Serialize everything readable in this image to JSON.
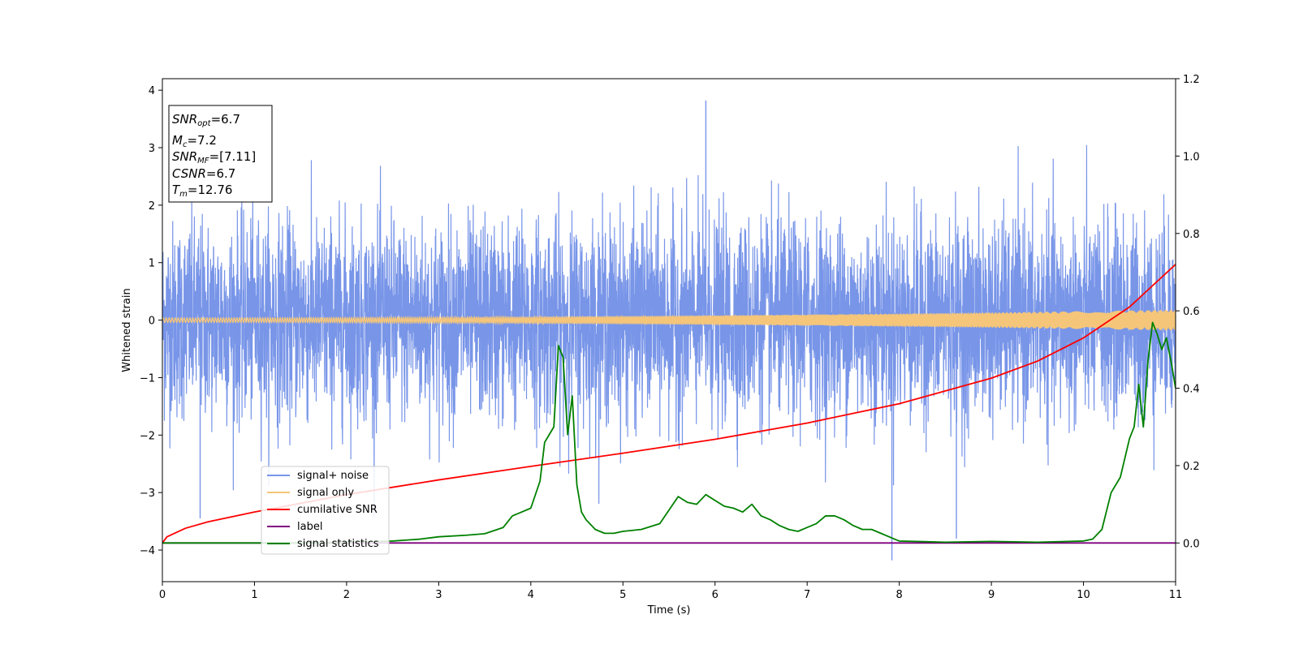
{
  "chart_data": {
    "type": "line",
    "title": "",
    "xlabel": "Time (s)",
    "ylabel": "Whitened strain",
    "xlim": [
      0,
      11
    ],
    "ylim_left": [
      -4.55,
      4.2
    ],
    "ylim_right": [
      -0.1,
      1.2
    ],
    "xticks": [
      0,
      1,
      2,
      3,
      4,
      5,
      6,
      7,
      8,
      9,
      10,
      11
    ],
    "yticks_left": [
      -4,
      -3,
      -2,
      -1,
      0,
      1,
      2,
      3,
      4
    ],
    "yticks_right": [
      0.0,
      0.2,
      0.4,
      0.6,
      0.8,
      1.0,
      1.2
    ],
    "grid": false,
    "legend_position": "lower-left",
    "info_box": {
      "lines": [
        {
          "italic": "SNR",
          "sub": "opt",
          "rest": "=6.7"
        },
        {
          "italic": "M",
          "sub": "c",
          "rest": "=7.2"
        },
        {
          "italic": "SNR",
          "sub": "MF",
          "rest": "=[7.11]"
        },
        {
          "italic": "CSNR",
          "sub": "",
          "rest": "=6.7"
        },
        {
          "italic": "T",
          "sub": "m",
          "rest": "=12.76"
        }
      ]
    },
    "series": [
      {
        "name": "signal+ noise",
        "axis": "left",
        "color": "#7895e8",
        "kind": "noise",
        "sigma": 0.85,
        "clip": [
          -4.2,
          3.82
        ],
        "spikes": [
          {
            "x": 5.9,
            "y": 3.82
          },
          {
            "x": 7.92,
            "y": -4.18
          },
          {
            "x": 0.41,
            "y": -3.45
          },
          {
            "x": 8.62,
            "y": -3.8
          }
        ]
      },
      {
        "name": "signal only",
        "axis": "left",
        "color": "#f5c67a",
        "kind": "chirp",
        "amp_start": 0.04,
        "amp_end": 0.18
      },
      {
        "name": "cumilative SNR",
        "axis": "right",
        "color": "#ff0000",
        "kind": "curve",
        "x": [
          0,
          0.05,
          0.25,
          0.5,
          1,
          2,
          3,
          4,
          5,
          6,
          7,
          8,
          9,
          9.5,
          10,
          10.5,
          11
        ],
        "y": [
          0.0,
          0.016,
          0.038,
          0.055,
          0.08,
          0.125,
          0.163,
          0.198,
          0.232,
          0.268,
          0.31,
          0.36,
          0.426,
          0.47,
          0.53,
          0.61,
          0.72
        ]
      },
      {
        "name": "label",
        "axis": "right",
        "color": "#800080",
        "kind": "curve",
        "x": [
          0,
          11
        ],
        "y": [
          0,
          0
        ]
      },
      {
        "name": "signal statistics",
        "axis": "right",
        "color": "#008000",
        "kind": "curve",
        "x": [
          0,
          0.5,
          1.0,
          1.5,
          2.0,
          2.5,
          2.8,
          3.0,
          3.3,
          3.5,
          3.7,
          3.8,
          3.9,
          4.0,
          4.1,
          4.15,
          4.2,
          4.25,
          4.3,
          4.35,
          4.4,
          4.45,
          4.5,
          4.55,
          4.6,
          4.7,
          4.8,
          4.9,
          5.0,
          5.2,
          5.4,
          5.5,
          5.6,
          5.7,
          5.8,
          5.9,
          6.0,
          6.1,
          6.2,
          6.3,
          6.4,
          6.5,
          6.6,
          6.7,
          6.8,
          6.9,
          7.0,
          7.1,
          7.2,
          7.3,
          7.4,
          7.5,
          7.6,
          7.7,
          7.8,
          7.9,
          8.0,
          8.5,
          9.0,
          9.5,
          10.0,
          10.1,
          10.2,
          10.3,
          10.4,
          10.5,
          10.55,
          10.6,
          10.65,
          10.7,
          10.75,
          10.8,
          10.85,
          10.9,
          10.95,
          11.0
        ],
        "y": [
          0.0,
          0.0,
          0.0,
          0.0,
          0.002,
          0.005,
          0.01,
          0.016,
          0.02,
          0.024,
          0.04,
          0.07,
          0.08,
          0.09,
          0.16,
          0.26,
          0.28,
          0.3,
          0.51,
          0.48,
          0.28,
          0.38,
          0.15,
          0.08,
          0.06,
          0.035,
          0.025,
          0.025,
          0.03,
          0.035,
          0.05,
          0.085,
          0.12,
          0.105,
          0.1,
          0.125,
          0.11,
          0.095,
          0.09,
          0.08,
          0.1,
          0.07,
          0.06,
          0.045,
          0.035,
          0.03,
          0.04,
          0.05,
          0.07,
          0.07,
          0.06,
          0.045,
          0.035,
          0.035,
          0.025,
          0.015,
          0.005,
          0.002,
          0.004,
          0.002,
          0.005,
          0.01,
          0.035,
          0.13,
          0.17,
          0.27,
          0.3,
          0.41,
          0.3,
          0.47,
          0.57,
          0.54,
          0.5,
          0.53,
          0.47,
          0.4
        ]
      }
    ]
  }
}
